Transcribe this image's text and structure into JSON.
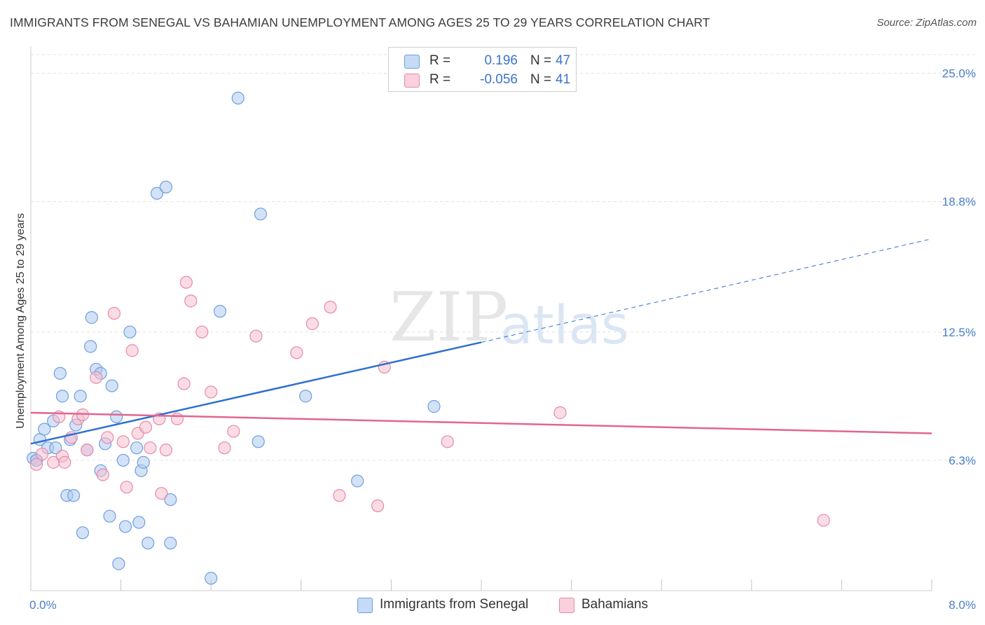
{
  "title": "IMMIGRANTS FROM SENEGAL VS BAHAMIAN UNEMPLOYMENT AMONG AGES 25 TO 29 YEARS CORRELATION CHART",
  "source": "Source: ZipAtlas.com",
  "watermark": {
    "zip": "ZIP",
    "atlas": "atlas"
  },
  "legend": {
    "series1": {
      "r_label": "R =",
      "r_value": "0.196",
      "n_label": "N =",
      "n_value": "47"
    },
    "series2": {
      "r_label": "R =",
      "r_value": "-0.056",
      "n_label": "N =",
      "n_value": "41"
    }
  },
  "colors": {
    "blue_fill": "#aecbf0",
    "blue_stroke": "#6f9fdc",
    "blue_line": "#2f6fcf",
    "pink_fill": "#f6bfd0",
    "pink_stroke": "#e88aa8",
    "pink_line": "#e26592",
    "grid": "#e0e0e0",
    "tick_text": "#4a7ec9"
  },
  "chart_data": {
    "type": "scatter",
    "title": "IMMIGRANTS FROM SENEGAL VS BAHAMIAN UNEMPLOYMENT AMONG AGES 25 TO 29 YEARS CORRELATION CHART",
    "xlabel": "",
    "ylabel": "Unemployment Among Ages 25 to 29 years",
    "xlim": [
      0,
      8
    ],
    "ylim": [
      0,
      25.9
    ],
    "x_tick_labels": [
      "0.0%",
      "8.0%"
    ],
    "y_ticks": [
      6.3,
      12.5,
      18.8,
      25.0
    ],
    "y_tick_labels": [
      "6.3%",
      "12.5%",
      "18.8%",
      "25.0%"
    ],
    "grid": true,
    "legend_position": "top-center",
    "series": [
      {
        "name": "Immigrants from Senegal",
        "points": [
          [
            0.02,
            6.4
          ],
          [
            0.05,
            6.3
          ],
          [
            0.08,
            7.3
          ],
          [
            0.12,
            7.8
          ],
          [
            0.15,
            6.9
          ],
          [
            0.2,
            8.2
          ],
          [
            0.22,
            6.9
          ],
          [
            0.26,
            10.5
          ],
          [
            0.28,
            9.4
          ],
          [
            0.32,
            4.6
          ],
          [
            0.35,
            7.3
          ],
          [
            0.38,
            4.6
          ],
          [
            0.4,
            8.0
          ],
          [
            0.44,
            9.4
          ],
          [
            0.46,
            2.8
          ],
          [
            0.5,
            6.8
          ],
          [
            0.53,
            11.8
          ],
          [
            0.54,
            13.2
          ],
          [
            0.58,
            10.7
          ],
          [
            0.62,
            10.5
          ],
          [
            0.62,
            5.8
          ],
          [
            0.66,
            7.1
          ],
          [
            0.7,
            3.6
          ],
          [
            0.72,
            9.9
          ],
          [
            0.76,
            8.4
          ],
          [
            0.78,
            1.3
          ],
          [
            0.82,
            6.3
          ],
          [
            0.84,
            3.1
          ],
          [
            0.88,
            12.5
          ],
          [
            0.94,
            6.9
          ],
          [
            0.96,
            3.3
          ],
          [
            0.98,
            5.8
          ],
          [
            1.0,
            6.2
          ],
          [
            1.04,
            2.3
          ],
          [
            1.12,
            19.2
          ],
          [
            1.2,
            19.5
          ],
          [
            1.24,
            2.3
          ],
          [
            1.24,
            4.4
          ],
          [
            1.6,
            0.6
          ],
          [
            1.68,
            13.5
          ],
          [
            1.84,
            23.8
          ],
          [
            2.02,
            7.2
          ],
          [
            2.04,
            18.2
          ],
          [
            2.44,
            9.4
          ],
          [
            2.9,
            5.3
          ],
          [
            3.58,
            8.9
          ],
          [
            0.05,
            6.3
          ]
        ]
      },
      {
        "name": "Bahamians",
        "points": [
          [
            0.05,
            6.1
          ],
          [
            0.1,
            6.6
          ],
          [
            0.2,
            6.2
          ],
          [
            0.25,
            8.4
          ],
          [
            0.28,
            6.5
          ],
          [
            0.3,
            6.2
          ],
          [
            0.36,
            7.4
          ],
          [
            0.42,
            8.3
          ],
          [
            0.46,
            8.5
          ],
          [
            0.5,
            6.8
          ],
          [
            0.58,
            10.3
          ],
          [
            0.64,
            5.6
          ],
          [
            0.68,
            7.4
          ],
          [
            0.74,
            13.4
          ],
          [
            0.82,
            7.2
          ],
          [
            0.85,
            5.0
          ],
          [
            0.9,
            11.6
          ],
          [
            0.95,
            7.6
          ],
          [
            1.02,
            7.9
          ],
          [
            1.06,
            6.9
          ],
          [
            1.14,
            8.3
          ],
          [
            1.16,
            4.7
          ],
          [
            1.2,
            6.8
          ],
          [
            1.3,
            8.3
          ],
          [
            1.36,
            10.0
          ],
          [
            1.38,
            14.9
          ],
          [
            1.42,
            14.0
          ],
          [
            1.52,
            12.5
          ],
          [
            1.6,
            9.6
          ],
          [
            1.72,
            6.9
          ],
          [
            1.8,
            7.7
          ],
          [
            2.0,
            12.3
          ],
          [
            2.36,
            11.5
          ],
          [
            2.5,
            12.9
          ],
          [
            2.66,
            13.7
          ],
          [
            2.74,
            4.6
          ],
          [
            3.08,
            4.1
          ],
          [
            3.14,
            10.8
          ],
          [
            3.7,
            7.2
          ],
          [
            4.7,
            8.6
          ],
          [
            7.04,
            3.4
          ]
        ]
      }
    ],
    "trendlines": [
      {
        "series": "Immigrants from Senegal",
        "x0": 0.0,
        "y0": 7.1,
        "x1": 4.0,
        "y1": 12.0,
        "dashed_to_x": 8.0,
        "dashed_to_y": 17.0
      },
      {
        "series": "Bahamians",
        "x0": 0.0,
        "y0": 8.6,
        "x1": 8.0,
        "y1": 7.6
      }
    ]
  },
  "bottom_legend": [
    {
      "label": "Immigrants from Senegal"
    },
    {
      "label": "Bahamians"
    }
  ]
}
